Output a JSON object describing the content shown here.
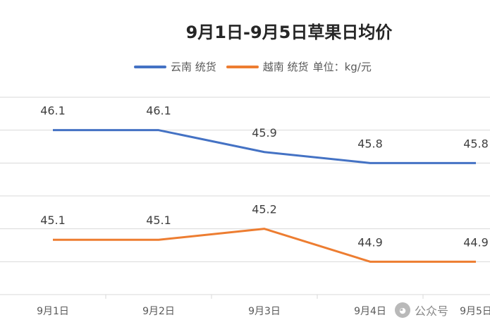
{
  "chart_data": {
    "type": "line",
    "title": "9月1日-9月5日草果日均价",
    "unit_label": "单位：kg/元",
    "categories": [
      "9月1日",
      "9月2日",
      "9月3日",
      "9月4日",
      "9月5日"
    ],
    "series": [
      {
        "name": "云南 统货",
        "color": "#4472C4",
        "values": [
          46.1,
          46.1,
          45.9,
          45.8,
          45.8
        ]
      },
      {
        "name": "越南 统货",
        "color": "#ED7D31",
        "values": [
          45.1,
          45.1,
          45.2,
          44.9,
          44.9
        ]
      }
    ],
    "ylim": [
      44.6,
      46.4
    ],
    "grid": true,
    "legend_position": "top"
  },
  "watermark": {
    "text": "公众号",
    "icon": "wechat-icon"
  }
}
